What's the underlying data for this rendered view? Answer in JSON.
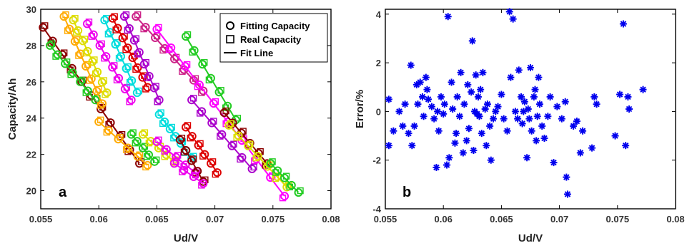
{
  "chart_data": [
    {
      "type": "scatter",
      "panel_label": "a",
      "xlabel": "Ud/V",
      "ylabel": "Capacity/Ah",
      "xlim": [
        0.055,
        0.08
      ],
      "ylim": [
        19,
        30
      ],
      "xticks": [
        "0.055",
        "0.06",
        "0.065",
        "0.07",
        "0.075",
        "0.08"
      ],
      "yticks": [
        "20",
        "22",
        "24",
        "26",
        "28",
        "30"
      ],
      "legend": {
        "position": "top-right",
        "entries": [
          "Fitting Capacity",
          "Real Capacity",
          "Fit Line"
        ]
      },
      "series": [
        {
          "color": "#8b0000",
          "x0": 0.0552,
          "y0": 29.0,
          "x1": 0.0635,
          "y1": 21.5,
          "n": 11
        },
        {
          "color": "#22cc22",
          "x0": 0.0558,
          "y0": 28.0,
          "x1": 0.0597,
          "y1": 25.0,
          "n": 7
        },
        {
          "color": "#ffaa00",
          "x0": 0.057,
          "y0": 29.6,
          "x1": 0.0603,
          "y1": 24.8,
          "n": 8
        },
        {
          "color": "#dddd00",
          "x0": 0.0578,
          "y0": 29.4,
          "x1": 0.0607,
          "y1": 25.4,
          "n": 8
        },
        {
          "color": "#ee00ee",
          "x0": 0.059,
          "y0": 29.2,
          "x1": 0.0628,
          "y1": 25.0,
          "n": 8
        },
        {
          "color": "#00dddd",
          "x0": 0.0605,
          "y0": 29.4,
          "x1": 0.0633,
          "y1": 25.4,
          "n": 7
        },
        {
          "color": "#dd0000",
          "x0": 0.0612,
          "y0": 29.5,
          "x1": 0.0642,
          "y1": 25.7,
          "n": 8
        },
        {
          "color": "#aa00cc",
          "x0": 0.0622,
          "y0": 29.6,
          "x1": 0.0652,
          "y1": 25.0,
          "n": 8
        },
        {
          "color": "#cc2288",
          "x0": 0.0632,
          "y0": 29.6,
          "x1": 0.069,
          "y1": 25.5,
          "n": 8
        },
        {
          "color": "#ffaa00",
          "x0": 0.06,
          "y0": 23.8,
          "x1": 0.0642,
          "y1": 21.4,
          "n": 6
        },
        {
          "color": "#22cc22",
          "x0": 0.0628,
          "y0": 23.1,
          "x1": 0.0648,
          "y1": 21.6,
          "n": 5
        },
        {
          "color": "#dddd00",
          "x0": 0.0638,
          "y0": 23.1,
          "x1": 0.0665,
          "y1": 21.6,
          "n": 5
        },
        {
          "color": "#ee00ee",
          "x0": 0.065,
          "y0": 22.7,
          "x1": 0.0683,
          "y1": 21.0,
          "n": 5
        },
        {
          "color": "#00dddd",
          "x0": 0.0652,
          "y0": 24.2,
          "x1": 0.068,
          "y1": 21.8,
          "n": 7
        },
        {
          "color": "#dd0000",
          "x0": 0.0675,
          "y0": 23.5,
          "x1": 0.0702,
          "y1": 21.0,
          "n": 6
        },
        {
          "color": "#8b0000",
          "x0": 0.067,
          "y0": 22.8,
          "x1": 0.069,
          "y1": 20.5,
          "n": 5
        },
        {
          "color": "#ee00ee",
          "x0": 0.0665,
          "y0": 21.5,
          "x1": 0.069,
          "y1": 20.4,
          "n": 4
        },
        {
          "color": "#ff00ff",
          "x0": 0.065,
          "y0": 28.9,
          "x1": 0.076,
          "y1": 19.7,
          "n": 10
        },
        {
          "color": "#22cc22",
          "x0": 0.0675,
          "y0": 28.5,
          "x1": 0.0718,
          "y1": 23.9,
          "n": 7
        },
        {
          "color": "#aa00cc",
          "x0": 0.068,
          "y0": 25.0,
          "x1": 0.0732,
          "y1": 21.2,
          "n": 7
        },
        {
          "color": "#8b0000",
          "x0": 0.0708,
          "y0": 24.3,
          "x1": 0.0745,
          "y1": 21.5,
          "n": 6
        },
        {
          "color": "#dddd00",
          "x0": 0.0712,
          "y0": 23.6,
          "x1": 0.0762,
          "y1": 20.2,
          "n": 7
        },
        {
          "color": "#22cc22",
          "x0": 0.0748,
          "y0": 21.5,
          "x1": 0.0772,
          "y1": 19.9,
          "n": 5
        }
      ]
    },
    {
      "type": "scatter",
      "panel_label": "b",
      "xlabel": "Ud/V",
      "ylabel": "Error/%",
      "xlim": [
        0.055,
        0.08
      ],
      "ylim": [
        -4,
        4.2
      ],
      "xticks": [
        "0.055",
        "0.06",
        "0.065",
        "0.07",
        "0.075",
        "0.08"
      ],
      "yticks": [
        "-4",
        "-2",
        "0",
        "2",
        "4"
      ],
      "marker": "asterisk",
      "color": "#0000ee",
      "points": [
        [
          0.0553,
          0.5
        ],
        [
          0.0553,
          -1.4
        ],
        [
          0.0557,
          -0.8
        ],
        [
          0.0562,
          0.0
        ],
        [
          0.0565,
          -0.6
        ],
        [
          0.0567,
          0.3
        ],
        [
          0.057,
          -0.9
        ],
        [
          0.0572,
          1.9
        ],
        [
          0.0573,
          -1.4
        ],
        [
          0.0575,
          -0.6
        ],
        [
          0.0577,
          1.1
        ],
        [
          0.0578,
          0.3
        ],
        [
          0.058,
          1.2
        ],
        [
          0.0582,
          0.6
        ],
        [
          0.0583,
          -0.2
        ],
        [
          0.0585,
          1.4
        ],
        [
          0.0586,
          0.9
        ],
        [
          0.0587,
          0.5
        ],
        [
          0.059,
          0.2
        ],
        [
          0.0592,
          -0.3
        ],
        [
          0.0594,
          -2.3
        ],
        [
          0.0595,
          0.0
        ],
        [
          0.0596,
          -0.8
        ],
        [
          0.0598,
          0.6
        ],
        [
          0.06,
          -0.1
        ],
        [
          0.0601,
          0.3
        ],
        [
          0.0603,
          -2.2
        ],
        [
          0.0604,
          3.9
        ],
        [
          0.0605,
          -1.9
        ],
        [
          0.0607,
          1.2
        ],
        [
          0.0608,
          0.1
        ],
        [
          0.061,
          -1.3
        ],
        [
          0.0611,
          -0.9
        ],
        [
          0.0612,
          0.6
        ],
        [
          0.0614,
          -0.2
        ],
        [
          0.0615,
          1.6
        ],
        [
          0.0617,
          -1.7
        ],
        [
          0.0618,
          0.3
        ],
        [
          0.062,
          -1.2
        ],
        [
          0.0621,
          1.1
        ],
        [
          0.0622,
          -0.7
        ],
        [
          0.0624,
          0.8
        ],
        [
          0.0625,
          2.9
        ],
        [
          0.0626,
          -1.6
        ],
        [
          0.0627,
          0.0
        ],
        [
          0.0628,
          1.5
        ],
        [
          0.0629,
          -0.1
        ],
        [
          0.063,
          0.6
        ],
        [
          0.0631,
          -0.2
        ],
        [
          0.0632,
          0.9
        ],
        [
          0.0633,
          -0.9
        ],
        [
          0.0634,
          1.6
        ],
        [
          0.0636,
          0.1
        ],
        [
          0.0637,
          -1.4
        ],
        [
          0.0638,
          0.3
        ],
        [
          0.064,
          -0.6
        ],
        [
          0.0641,
          -2.0
        ],
        [
          0.0643,
          -0.3
        ],
        [
          0.0645,
          0.0
        ],
        [
          0.0647,
          0.2
        ],
        [
          0.065,
          0.7
        ],
        [
          0.0652,
          -0.3
        ],
        [
          0.0655,
          -0.8
        ],
        [
          0.0657,
          4.1
        ],
        [
          0.0658,
          1.4
        ],
        [
          0.066,
          3.8
        ],
        [
          0.0662,
          0.0
        ],
        [
          0.0664,
          -0.3
        ],
        [
          0.0665,
          1.7
        ],
        [
          0.0667,
          0.6
        ],
        [
          0.0668,
          -0.5
        ],
        [
          0.0669,
          0.0
        ],
        [
          0.067,
          0.4
        ],
        [
          0.0672,
          -1.9
        ],
        [
          0.0673,
          0.1
        ],
        [
          0.0674,
          -0.3
        ],
        [
          0.0675,
          1.8
        ],
        [
          0.0676,
          -0.8
        ],
        [
          0.0678,
          0.6
        ],
        [
          0.0679,
          0.9
        ],
        [
          0.068,
          -1.2
        ],
        [
          0.0681,
          -0.2
        ],
        [
          0.0682,
          1.4
        ],
        [
          0.0683,
          0.3
        ],
        [
          0.0685,
          -0.6
        ],
        [
          0.0687,
          -1.1
        ],
        [
          0.069,
          -0.2
        ],
        [
          0.0692,
          0.6
        ],
        [
          0.0695,
          -2.1
        ],
        [
          0.0698,
          0.2
        ],
        [
          0.0702,
          -0.3
        ],
        [
          0.0705,
          0.4
        ],
        [
          0.0706,
          -2.7
        ],
        [
          0.0707,
          -3.4
        ],
        [
          0.0712,
          -0.6
        ],
        [
          0.0715,
          -0.4
        ],
        [
          0.0718,
          -1.7
        ],
        [
          0.072,
          -0.8
        ],
        [
          0.0728,
          -1.5
        ],
        [
          0.073,
          0.6
        ],
        [
          0.0732,
          0.3
        ],
        [
          0.0748,
          -1.0
        ],
        [
          0.0752,
          0.7
        ],
        [
          0.0755,
          3.6
        ],
        [
          0.0757,
          -1.4
        ],
        [
          0.0759,
          0.6
        ],
        [
          0.076,
          0.1
        ],
        [
          0.0772,
          0.9
        ]
      ]
    }
  ]
}
